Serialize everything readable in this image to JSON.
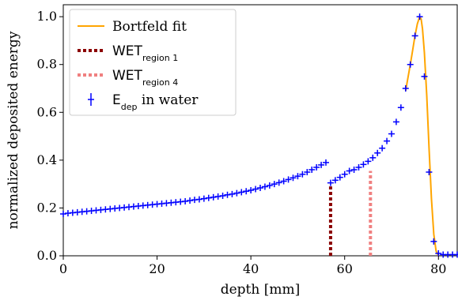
{
  "chart_data": {
    "type": "line",
    "xlabel": "depth [mm]",
    "ylabel": "normalized deposited energy",
    "xlim": [
      0,
      84
    ],
    "ylim": [
      0,
      1.05
    ],
    "xticks": [
      {
        "value": 0,
        "label": "0"
      },
      {
        "value": 20,
        "label": "20"
      },
      {
        "value": 40,
        "label": "40"
      },
      {
        "value": 60,
        "label": "60"
      },
      {
        "value": 80,
        "label": "80"
      }
    ],
    "yticks": [
      {
        "value": 0.0,
        "label": "0.0"
      },
      {
        "value": 0.2,
        "label": "0.2"
      },
      {
        "value": 0.4,
        "label": "0.4"
      },
      {
        "value": 0.6,
        "label": "0.6"
      },
      {
        "value": 0.8,
        "label": "0.8"
      },
      {
        "value": 1.0,
        "label": "1.0"
      }
    ],
    "grid": false,
    "legend_position": "top-left",
    "legend": [
      {
        "key": "fit",
        "text": "Bortfeld fit",
        "sub": ""
      },
      {
        "key": "wet1",
        "text": "WET",
        "sub": "region 1"
      },
      {
        "key": "wet4",
        "text": "WET",
        "sub": "region 4"
      },
      {
        "key": "edep",
        "text": "E",
        "sub": "dep",
        "suffix": " in water"
      }
    ],
    "series": [
      {
        "key": "edep",
        "style": "errorbar-markers",
        "color": "#0000ff",
        "x": [
          0,
          1,
          2,
          3,
          4,
          5,
          6,
          7,
          8,
          9,
          10,
          11,
          12,
          13,
          14,
          15,
          16,
          17,
          18,
          19,
          20,
          21,
          22,
          23,
          24,
          25,
          26,
          27,
          28,
          29,
          30,
          31,
          32,
          33,
          34,
          35,
          36,
          37,
          38,
          39,
          40,
          41,
          42,
          43,
          44,
          45,
          46,
          47,
          48,
          49,
          50,
          51,
          52,
          53,
          54,
          55,
          56,
          57,
          58,
          59,
          60,
          61,
          62,
          63,
          64,
          65,
          66,
          67,
          68,
          69,
          70,
          71,
          72,
          73,
          74,
          75,
          76,
          77,
          78,
          79,
          80,
          81,
          82,
          83,
          84
        ],
        "y": [
          0.175,
          0.178,
          0.18,
          0.182,
          0.184,
          0.186,
          0.188,
          0.19,
          0.192,
          0.194,
          0.196,
          0.198,
          0.2,
          0.202,
          0.204,
          0.206,
          0.208,
          0.21,
          0.212,
          0.214,
          0.216,
          0.218,
          0.22,
          0.222,
          0.224,
          0.226,
          0.228,
          0.231,
          0.234,
          0.236,
          0.239,
          0.242,
          0.245,
          0.248,
          0.251,
          0.255,
          0.258,
          0.262,
          0.266,
          0.27,
          0.274,
          0.279,
          0.284,
          0.289,
          0.294,
          0.3,
          0.306,
          0.312,
          0.319,
          0.326,
          0.333,
          0.341,
          0.35,
          0.36,
          0.37,
          0.38,
          0.39,
          0.305,
          0.316,
          0.328,
          0.341,
          0.355,
          0.36,
          0.37,
          0.382,
          0.395,
          0.41,
          0.43,
          0.45,
          0.48,
          0.51,
          0.56,
          0.62,
          0.7,
          0.8,
          0.92,
          1.0,
          0.75,
          0.35,
          0.06,
          0.01,
          0.005,
          0.005,
          0.005,
          0.005
        ]
      },
      {
        "key": "fit",
        "style": "line",
        "color": "#ffa500",
        "x": [
          73,
          74,
          74.5,
          75,
          75.5,
          76,
          76.3,
          76.6,
          77,
          77.5,
          78,
          78.5,
          79,
          79.5,
          80
        ],
        "y": [
          0.69,
          0.8,
          0.86,
          0.92,
          0.97,
          1.0,
          0.99,
          0.95,
          0.85,
          0.67,
          0.45,
          0.24,
          0.09,
          0.02,
          0.0
        ]
      },
      {
        "key": "wet1",
        "style": "vline-dotted",
        "color": "#8b0000",
        "x": 57.0,
        "y": 0.29
      },
      {
        "key": "wet4",
        "style": "vline-dotted",
        "color": "#f08080",
        "x": 65.5,
        "y": 0.355
      }
    ]
  }
}
